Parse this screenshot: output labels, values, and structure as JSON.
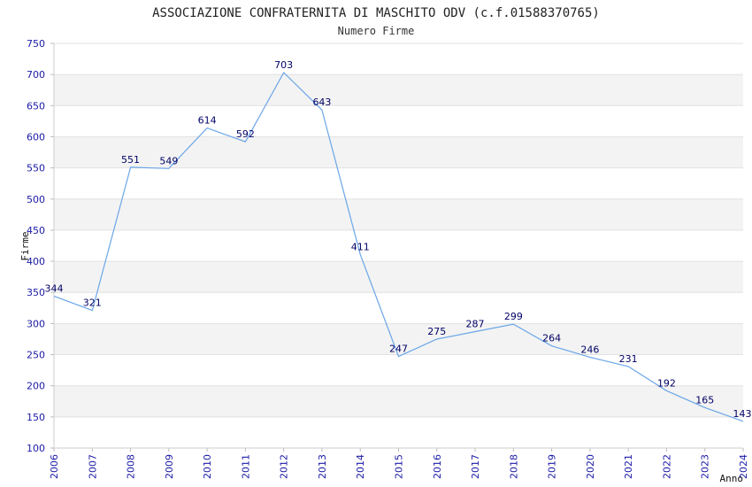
{
  "chart_data": {
    "type": "line",
    "title": "ASSOCIAZIONE CONFRATERNITA DI MASCHITO ODV (c.f.01588370765)",
    "subtitle": "Numero Firme",
    "xlabel": "Anno",
    "ylabel": "Firme",
    "ylim": [
      100,
      750
    ],
    "yticks": [
      100,
      150,
      200,
      250,
      300,
      350,
      400,
      450,
      500,
      550,
      600,
      650,
      700,
      750
    ],
    "grid": true,
    "categories": [
      "2006",
      "2007",
      "2008",
      "2009",
      "2010",
      "2011",
      "2012",
      "2013",
      "2014",
      "2015",
      "2016",
      "2017",
      "2018",
      "2019",
      "2020",
      "2021",
      "2022",
      "2023",
      "2024"
    ],
    "series": [
      {
        "values": [
          344,
          321,
          551,
          549,
          614,
          592,
          703,
          643,
          411,
          247,
          275,
          287,
          299,
          264,
          246,
          231,
          192,
          165,
          143
        ],
        "color": "#6aa6e8"
      }
    ],
    "colors": {
      "band": "#f3f3f3",
      "axis": "#cccccc",
      "tick_text": "#1a1aa6",
      "data_label": "#000066"
    }
  }
}
